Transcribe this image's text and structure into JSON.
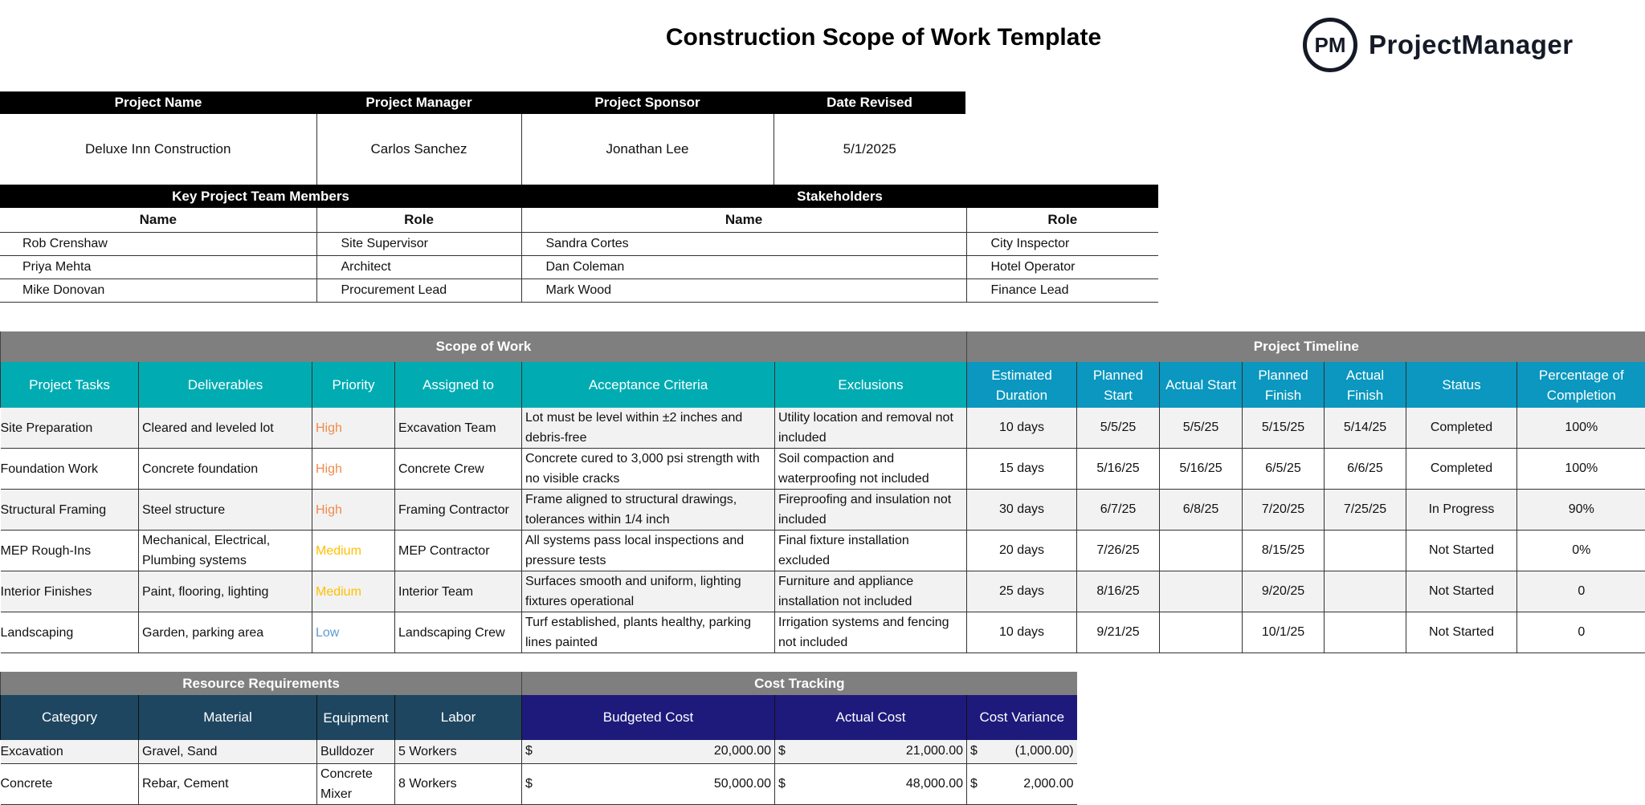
{
  "title": "Construction Scope of Work Template",
  "logo": {
    "mark": "PM",
    "word": "ProjectManager"
  },
  "project_info": {
    "headers": [
      "Project Name",
      "Project Manager",
      "Project Sponsor",
      "Date Revised"
    ],
    "values": [
      "Deluxe Inn Construction",
      "Carlos Sanchez",
      "Jonathan Lee",
      "5/1/2025"
    ]
  },
  "team": {
    "team_title": "Key Project Team Members",
    "stakeholders_title": "Stakeholders",
    "col_name": "Name",
    "col_role": "Role",
    "rows": [
      {
        "name": "Rob Crenshaw",
        "role": "Site Supervisor",
        "s_name": "Sandra Cortes",
        "s_role": "City Inspector"
      },
      {
        "name": "Priya Mehta",
        "role": "Architect",
        "s_name": "Dan Coleman",
        "s_role": "Hotel Operator"
      },
      {
        "name": "Mike Donovan",
        "role": "Procurement Lead",
        "s_name": "Mark Wood",
        "s_role": "Finance Lead"
      }
    ]
  },
  "scope": {
    "section_scope": "Scope of Work",
    "section_timeline": "Project Timeline",
    "headers": [
      "Project Tasks",
      "Deliverables",
      "Priority",
      "Assigned to",
      "Acceptance Criteria",
      "Exclusions",
      "Estimated Duration",
      "Planned Start",
      "Actual Start",
      "Planned Finish",
      "Actual Finish",
      "Status",
      "Percentage of Completion"
    ],
    "priority_colors": {
      "High": "#f08a4b",
      "Medium": "#ffc000",
      "Low": "#5b9bd5"
    },
    "rows": [
      [
        "Site Preparation",
        "Cleared and leveled lot",
        "High",
        "Excavation Team",
        "Lot must be level within ±2 inches and debris-free",
        "Utility location and removal not included",
        "10 days",
        "5/5/25",
        "5/5/25",
        "5/15/25",
        "5/14/25",
        "Completed",
        "100%"
      ],
      [
        "Foundation Work",
        "Concrete foundation",
        "High",
        "Concrete Crew",
        "Concrete cured to 3,000 psi strength with no visible cracks",
        "Soil compaction and waterproofing not included",
        "15 days",
        "5/16/25",
        "5/16/25",
        "6/5/25",
        "6/6/25",
        "Completed",
        "100%"
      ],
      [
        "Structural Framing",
        "Steel structure",
        "High",
        "Framing Contractor",
        "Frame aligned to structural drawings, tolerances within 1/4 inch",
        "Fireproofing and insulation not included",
        "30 days",
        "6/7/25",
        "6/8/25",
        "7/20/25",
        "7/25/25",
        "In Progress",
        "90%"
      ],
      [
        "MEP Rough-Ins",
        "Mechanical, Electrical, Plumbing systems",
        "Medium",
        "MEP Contractor",
        "All systems pass local inspections and pressure tests",
        "Final fixture installation excluded",
        "20 days",
        "7/26/25",
        "",
        "8/15/25",
        "",
        "Not Started",
        "0%"
      ],
      [
        "Interior Finishes",
        "Paint, flooring, lighting",
        "Medium",
        "Interior Team",
        "Surfaces smooth and uniform, lighting fixtures operational",
        "Furniture and appliance installation not included",
        "25 days",
        "8/16/25",
        "",
        "9/20/25",
        "",
        "Not Started",
        "0"
      ],
      [
        "Landscaping",
        "Garden, parking area",
        "Low",
        "Landscaping Crew",
        "Turf established, plants healthy, parking lines painted",
        "Irrigation systems and fencing not included",
        "10 days",
        "9/21/25",
        "",
        "10/1/25",
        "",
        "Not Started",
        "0"
      ]
    ]
  },
  "resources": {
    "section_resources": "Resource Requirements",
    "section_cost": "Cost Tracking",
    "headers": [
      "Category",
      "Material",
      "Equipment",
      "Labor",
      "Budgeted Cost",
      "Actual Cost",
      "Cost Variance"
    ],
    "currency": "$",
    "rows": [
      [
        "Excavation",
        "Gravel, Sand",
        "Bulldozer",
        "5 Workers",
        "20,000.00",
        "21,000.00",
        "(1,000.00)"
      ],
      [
        "Concrete",
        "Rebar, Cement",
        "Concrete Mixer",
        "8 Workers",
        "50,000.00",
        "48,000.00",
        "2,000.00"
      ]
    ]
  }
}
